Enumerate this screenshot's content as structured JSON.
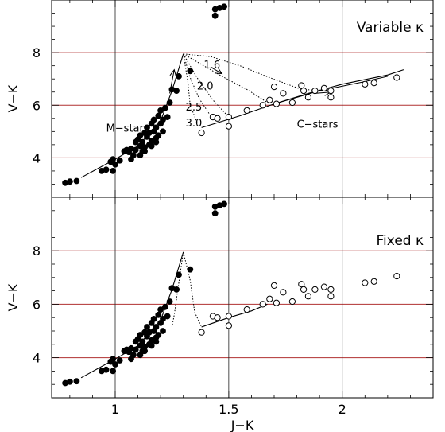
{
  "chart_data": [
    {
      "type": "scatter",
      "id": "top",
      "label": "Variable κ",
      "ylabel": "V−K",
      "xlim": [
        0.72,
        2.4
      ],
      "ylim": [
        2.5,
        10.0
      ],
      "yticks": [
        4,
        6,
        8
      ],
      "ygrid_lines": [
        4,
        6,
        8
      ],
      "xgrid_lines": [
        1,
        1.5,
        2
      ],
      "annotations": [
        {
          "text": "M−stars",
          "x": 0.96,
          "y": 5.15
        },
        {
          "text": "C−stars",
          "x": 1.8,
          "y": 5.3
        },
        {
          "text": "1.6",
          "x": 1.39,
          "y": 7.55
        },
        {
          "text": "2.0",
          "x": 1.36,
          "y": 6.75
        },
        {
          "text": "2.5",
          "x": 1.31,
          "y": 5.95
        },
        {
          "text": "3.0",
          "x": 1.31,
          "y": 5.35
        }
      ],
      "track_labels": [
        "1.6",
        "2.0",
        "2.5",
        "3.0"
      ],
      "series": [
        {
          "marker": "filled",
          "points": [
            [
              0.78,
              3.05
            ],
            [
              0.8,
              3.1
            ],
            [
              0.83,
              3.12
            ],
            [
              0.94,
              3.5
            ],
            [
              0.96,
              3.55
            ],
            [
              0.98,
              3.85
            ],
            [
              0.99,
              3.95
            ],
            [
              1.0,
              3.75
            ],
            [
              0.99,
              3.5
            ],
            [
              1.02,
              3.9
            ],
            [
              1.04,
              4.25
            ],
            [
              1.05,
              4.3
            ],
            [
              1.06,
              4.22
            ],
            [
              1.07,
              4.35
            ],
            [
              1.08,
              4.1
            ],
            [
              1.09,
              4.6
            ],
            [
              1.09,
              4.3
            ],
            [
              1.1,
              4.7
            ],
            [
              1.11,
              4.45
            ],
            [
              1.11,
              4.85
            ],
            [
              1.12,
              4.25
            ],
            [
              1.12,
              4.6
            ],
            [
              1.13,
              4.95
            ],
            [
              1.13,
              4.4
            ],
            [
              1.14,
              4.8
            ],
            [
              1.14,
              5.15
            ],
            [
              1.15,
              4.5
            ],
            [
              1.15,
              4.95
            ],
            [
              1.16,
              5.3
            ],
            [
              1.16,
              4.65
            ],
            [
              1.17,
              5.0
            ],
            [
              1.17,
              5.45
            ],
            [
              1.18,
              4.75
            ],
            [
              1.18,
              5.15
            ],
            [
              1.19,
              5.6
            ],
            [
              1.19,
              4.85
            ],
            [
              1.2,
              5.3
            ],
            [
              1.2,
              5.8
            ],
            [
              1.21,
              5.45
            ],
            [
              1.21,
              5.0
            ],
            [
              1.22,
              5.9
            ],
            [
              1.23,
              5.55
            ],
            [
              1.24,
              6.1
            ],
            [
              1.25,
              6.6
            ],
            [
              1.27,
              6.55
            ],
            [
              1.28,
              7.1
            ],
            [
              1.33,
              7.3
            ],
            [
              1.44,
              9.4
            ],
            [
              1.44,
              9.65
            ],
            [
              1.46,
              9.7
            ],
            [
              1.48,
              9.75
            ],
            [
              1.11,
              4.1
            ],
            [
              1.13,
              4.25
            ],
            [
              1.07,
              3.95
            ],
            [
              1.16,
              4.45
            ],
            [
              1.18,
              4.6
            ]
          ]
        },
        {
          "marker": "open",
          "points": [
            [
              1.38,
              4.95
            ],
            [
              1.43,
              5.55
            ],
            [
              1.45,
              5.5
            ],
            [
              1.5,
              5.55
            ],
            [
              1.5,
              5.2
            ],
            [
              1.58,
              5.8
            ],
            [
              1.65,
              6.0
            ],
            [
              1.68,
              6.2
            ],
            [
              1.7,
              6.7
            ],
            [
              1.71,
              6.05
            ],
            [
              1.74,
              6.45
            ],
            [
              1.78,
              6.1
            ],
            [
              1.82,
              6.75
            ],
            [
              1.83,
              6.55
            ],
            [
              1.85,
              6.3
            ],
            [
              1.88,
              6.55
            ],
            [
              1.92,
              6.65
            ],
            [
              1.95,
              6.55
            ],
            [
              1.95,
              6.3
            ],
            [
              2.1,
              6.8
            ],
            [
              2.14,
              6.85
            ],
            [
              2.24,
              7.05
            ]
          ]
        }
      ],
      "lines": [
        {
          "name": "m-star-sequence",
          "style": "solid",
          "points": [
            [
              0.85,
              3.25
            ],
            [
              1.0,
              3.95
            ],
            [
              1.1,
              4.45
            ],
            [
              1.2,
              5.4
            ],
            [
              1.25,
              6.55
            ],
            [
              1.3,
              7.95
            ]
          ]
        },
        {
          "name": "c-star-sequence",
          "style": "solid",
          "points": [
            [
              1.38,
              5.15
            ],
            [
              1.55,
              5.6
            ],
            [
              1.7,
              6.05
            ],
            [
              1.85,
              6.45
            ],
            [
              2.0,
              6.8
            ],
            [
              2.2,
              7.15
            ],
            [
              2.27,
              7.35
            ]
          ]
        },
        {
          "name": "c-star-sequence-2",
          "style": "solid",
          "points": [
            [
              1.7,
              6.05
            ],
            [
              1.9,
              6.55
            ],
            [
              2.1,
              6.9
            ],
            [
              2.2,
              7.1
            ]
          ]
        },
        {
          "name": "track-1.6",
          "style": "dotted",
          "points": [
            [
              1.3,
              7.95
            ],
            [
              1.38,
              7.55
            ],
            [
              1.47,
              7.1
            ],
            [
              1.58,
              6.6
            ],
            [
              1.68,
              6.05
            ]
          ]
        },
        {
          "name": "track-2.0",
          "style": "dotted",
          "points": [
            [
              1.3,
              7.95
            ],
            [
              1.36,
              7.05
            ],
            [
              1.43,
              6.2
            ],
            [
              1.5,
              5.55
            ]
          ]
        },
        {
          "name": "track-2.5",
          "style": "dotted",
          "points": [
            [
              1.3,
              7.95
            ],
            [
              1.33,
              7.05
            ],
            [
              1.37,
              6.25
            ],
            [
              1.42,
              5.6
            ]
          ]
        },
        {
          "name": "track-3.0",
          "style": "dotted",
          "points": [
            [
              1.3,
              7.95
            ],
            [
              1.32,
              6.9
            ],
            [
              1.33,
              6.0
            ],
            [
              1.36,
              5.35
            ]
          ]
        },
        {
          "name": "track-top-dotted",
          "style": "dotted",
          "points": [
            [
              1.3,
              7.95
            ],
            [
              1.42,
              7.85
            ],
            [
              1.55,
              7.5
            ],
            [
              1.68,
              7.05
            ],
            [
              1.82,
              6.6
            ],
            [
              1.95,
              6.55
            ]
          ]
        }
      ],
      "arrows": [
        {
          "from": [
            1.42,
            7.45
          ],
          "to": [
            1.47,
            7.2
          ]
        },
        {
          "from": [
            1.24,
            6.45
          ],
          "to": [
            1.26,
            7.35
          ]
        },
        {
          "from": [
            1.88,
            6.45
          ],
          "to": [
            1.95,
            6.5
          ]
        }
      ]
    },
    {
      "type": "scatter",
      "id": "bottom",
      "label": "Fixed κ",
      "ylabel": "V−K",
      "xlabel": "J−K",
      "xlim": [
        0.72,
        2.4
      ],
      "ylim": [
        2.5,
        10.0
      ],
      "yticks": [
        4,
        6,
        8
      ],
      "xticks": [
        1,
        1.5,
        2
      ],
      "ygrid_lines": [
        4,
        6,
        8
      ],
      "xgrid_lines": [
        1,
        1.5,
        2
      ],
      "series": [
        {
          "marker": "filled",
          "points": [
            [
              0.78,
              3.05
            ],
            [
              0.8,
              3.1
            ],
            [
              0.83,
              3.12
            ],
            [
              0.94,
              3.5
            ],
            [
              0.96,
              3.55
            ],
            [
              0.98,
              3.85
            ],
            [
              0.99,
              3.95
            ],
            [
              1.0,
              3.75
            ],
            [
              0.99,
              3.5
            ],
            [
              1.02,
              3.9
            ],
            [
              1.04,
              4.25
            ],
            [
              1.05,
              4.3
            ],
            [
              1.06,
              4.22
            ],
            [
              1.07,
              4.35
            ],
            [
              1.08,
              4.1
            ],
            [
              1.09,
              4.6
            ],
            [
              1.09,
              4.3
            ],
            [
              1.1,
              4.7
            ],
            [
              1.11,
              4.45
            ],
            [
              1.11,
              4.85
            ],
            [
              1.12,
              4.25
            ],
            [
              1.12,
              4.6
            ],
            [
              1.13,
              4.95
            ],
            [
              1.13,
              4.4
            ],
            [
              1.14,
              4.8
            ],
            [
              1.14,
              5.15
            ],
            [
              1.15,
              4.5
            ],
            [
              1.15,
              4.95
            ],
            [
              1.16,
              5.3
            ],
            [
              1.16,
              4.65
            ],
            [
              1.17,
              5.0
            ],
            [
              1.17,
              5.45
            ],
            [
              1.18,
              4.75
            ],
            [
              1.18,
              5.15
            ],
            [
              1.19,
              5.6
            ],
            [
              1.19,
              4.85
            ],
            [
              1.2,
              5.3
            ],
            [
              1.2,
              5.8
            ],
            [
              1.21,
              5.45
            ],
            [
              1.21,
              5.0
            ],
            [
              1.22,
              5.9
            ],
            [
              1.23,
              5.55
            ],
            [
              1.24,
              6.1
            ],
            [
              1.25,
              6.6
            ],
            [
              1.27,
              6.55
            ],
            [
              1.28,
              7.1
            ],
            [
              1.33,
              7.3
            ],
            [
              1.44,
              9.4
            ],
            [
              1.44,
              9.65
            ],
            [
              1.46,
              9.7
            ],
            [
              1.48,
              9.75
            ],
            [
              1.11,
              4.1
            ],
            [
              1.13,
              4.25
            ],
            [
              1.07,
              3.95
            ],
            [
              1.16,
              4.45
            ],
            [
              1.18,
              4.6
            ]
          ]
        },
        {
          "marker": "open",
          "points": [
            [
              1.38,
              4.95
            ],
            [
              1.43,
              5.55
            ],
            [
              1.45,
              5.5
            ],
            [
              1.5,
              5.55
            ],
            [
              1.5,
              5.2
            ],
            [
              1.58,
              5.8
            ],
            [
              1.65,
              6.0
            ],
            [
              1.68,
              6.2
            ],
            [
              1.7,
              6.7
            ],
            [
              1.71,
              6.05
            ],
            [
              1.74,
              6.45
            ],
            [
              1.78,
              6.1
            ],
            [
              1.82,
              6.75
            ],
            [
              1.83,
              6.55
            ],
            [
              1.85,
              6.3
            ],
            [
              1.88,
              6.55
            ],
            [
              1.92,
              6.65
            ],
            [
              1.95,
              6.55
            ],
            [
              1.95,
              6.3
            ],
            [
              2.1,
              6.8
            ],
            [
              2.14,
              6.85
            ],
            [
              2.24,
              7.05
            ]
          ]
        }
      ],
      "lines": [
        {
          "name": "m-star-sequence",
          "style": "solid",
          "points": [
            [
              0.85,
              3.25
            ],
            [
              1.0,
              3.95
            ],
            [
              1.1,
              4.45
            ],
            [
              1.2,
              5.4
            ],
            [
              1.25,
              6.55
            ],
            [
              1.3,
              7.95
            ]
          ]
        },
        {
          "name": "c-star-sequence",
          "style": "solid",
          "points": [
            [
              1.38,
              5.15
            ],
            [
              1.5,
              5.5
            ],
            [
              1.6,
              5.75
            ],
            [
              1.67,
              6.0
            ]
          ]
        },
        {
          "name": "track-fixed-1",
          "style": "dotted",
          "points": [
            [
              1.3,
              7.95
            ],
            [
              1.33,
              6.9
            ],
            [
              1.35,
              5.7
            ],
            [
              1.38,
              5.15
            ]
          ]
        },
        {
          "name": "track-fixed-2",
          "style": "dotted",
          "points": [
            [
              1.3,
              7.95
            ],
            [
              1.28,
              6.8
            ],
            [
              1.26,
              5.6
            ],
            [
              1.25,
              5.15
            ]
          ]
        }
      ],
      "arrows": []
    }
  ]
}
